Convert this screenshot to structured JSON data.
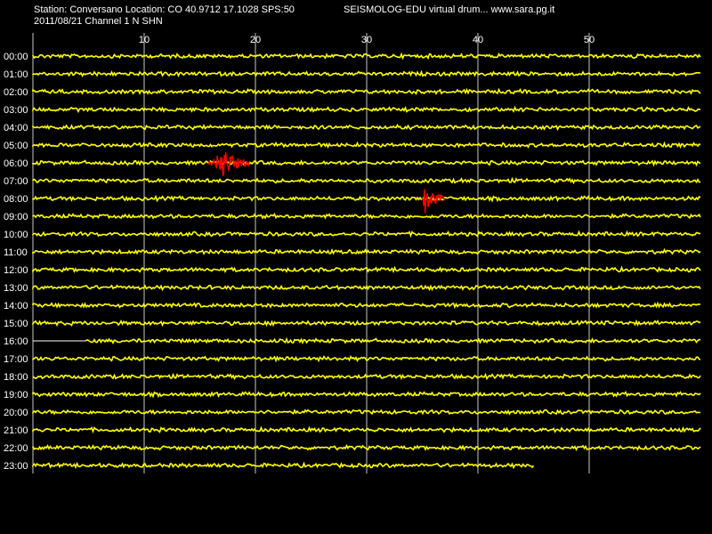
{
  "header": {
    "station_line": "Station: Conversano Location: CO 40.9712 17.1028 SPS:50",
    "date_line": "2011/08/21  Channel 1 N SHN",
    "product_line": "SEISMOLOG-EDU virtual drum...  www.sara.pg.it"
  },
  "chart_data": {
    "type": "line",
    "xticks": [
      "10",
      "20",
      "30",
      "40",
      "50"
    ],
    "xtick_values": [
      10,
      20,
      30,
      40,
      50
    ],
    "xlim": [
      0,
      61
    ],
    "hours": [
      "00:00",
      "01:00",
      "02:00",
      "03:00",
      "04:00",
      "05:00",
      "06:00",
      "07:00",
      "08:00",
      "09:00",
      "10:00",
      "11:00",
      "12:00",
      "13:00",
      "14:00",
      "15:00",
      "16:00",
      "17:00",
      "18:00",
      "19:00",
      "20:00",
      "21:00",
      "22:00",
      "23:00"
    ],
    "events": [
      {
        "hour": "06:00",
        "start_min": 15.8,
        "peak_min": 17.0,
        "end_min": 19.5
      },
      {
        "hour": "08:00",
        "start_min": 35.0,
        "peak_min": 35.2,
        "end_min": 37.0
      }
    ],
    "data_gap": {
      "hour": "16:00",
      "start_min": 0,
      "end_min": 4.8
    },
    "last_trace": {
      "hour": "23:00",
      "end_min": 45.0
    },
    "colors": {
      "trace": "#ffff00",
      "event": "#ff0000",
      "gap": "#ffffff",
      "grid": "#c8c8c8",
      "background": "#000000"
    }
  }
}
